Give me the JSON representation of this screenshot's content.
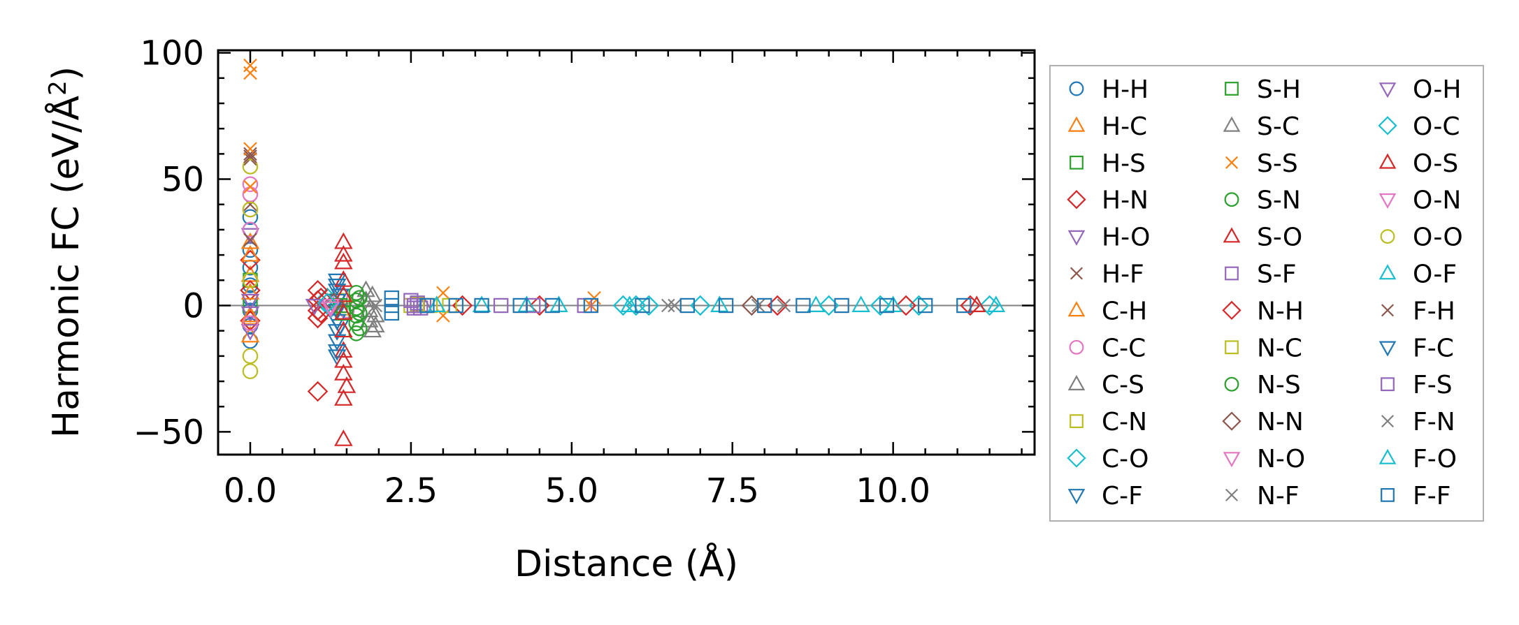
{
  "chart_data": {
    "type": "scatter",
    "title": "",
    "xlabel": "Distance (Å)",
    "ylabel_main": "Harmonic FC (eV/Å",
    "ylabel_sup": "2",
    "ylabel_close": ")",
    "xlim": [
      -0.5,
      12.2
    ],
    "ylim": [
      -59,
      101
    ],
    "x_ticks": [
      0.0,
      2.5,
      5.0,
      7.5,
      10.0
    ],
    "x_tick_labels": [
      "0.0",
      "2.5",
      "5.0",
      "7.5",
      "10.0"
    ],
    "y_ticks": [
      -50,
      0,
      50,
      100
    ],
    "y_tick_labels": [
      "−50",
      "0",
      "50",
      "100"
    ],
    "zero_line": 0,
    "legend_position": "right, outside plot",
    "series": [
      {
        "name": "H-H",
        "marker": "circle",
        "color": "#1f77b4",
        "points": [
          [
            0,
            35
          ],
          [
            0,
            30
          ],
          [
            0,
            22
          ],
          [
            0,
            15
          ],
          [
            0,
            8
          ],
          [
            0,
            3
          ],
          [
            0,
            -2
          ],
          [
            0,
            -8
          ],
          [
            0,
            -14
          ]
        ]
      },
      {
        "name": "H-C",
        "marker": "triangle-up",
        "color": "#ff7f0e",
        "points": [
          [
            0,
            25
          ],
          [
            0,
            12
          ],
          [
            0,
            -5
          ],
          [
            0,
            -12
          ]
        ]
      },
      {
        "name": "H-S",
        "marker": "square",
        "color": "#2ca02c",
        "points": [
          [
            0,
            10
          ],
          [
            0,
            0
          ]
        ]
      },
      {
        "name": "H-N",
        "marker": "diamond",
        "color": "#d62728",
        "points": [
          [
            0,
            18
          ],
          [
            0,
            6
          ],
          [
            0,
            -6
          ]
        ]
      },
      {
        "name": "H-O",
        "marker": "triangle-down",
        "color": "#9467bd",
        "points": [
          [
            0,
            28
          ],
          [
            0,
            -3
          ],
          [
            0,
            -10
          ]
        ]
      },
      {
        "name": "H-F",
        "marker": "x",
        "color": "#8c564b",
        "points": [
          [
            0,
            60
          ],
          [
            0,
            58
          ],
          [
            0,
            40
          ]
        ]
      },
      {
        "name": "C-H",
        "marker": "triangle-up",
        "color": "#ff7f0e",
        "points": [
          [
            0,
            20
          ],
          [
            0,
            5
          ],
          [
            0,
            -4
          ]
        ]
      },
      {
        "name": "C-C",
        "marker": "circle",
        "color": "#e377c2",
        "points": [
          [
            0,
            48
          ],
          [
            0,
            44
          ],
          [
            0,
            38
          ],
          [
            0,
            30
          ],
          [
            0,
            -7
          ],
          [
            1.4,
            4
          ],
          [
            1.5,
            -2
          ]
        ]
      },
      {
        "name": "C-S",
        "marker": "triangle-up",
        "color": "#7f7f7f",
        "points": [
          [
            1.8,
            6
          ],
          [
            1.8,
            2
          ],
          [
            1.85,
            -2
          ],
          [
            1.85,
            -6
          ],
          [
            1.9,
            -10
          ],
          [
            2.7,
            0
          ]
        ]
      },
      {
        "name": "C-N",
        "marker": "square",
        "color": "#bcbd22",
        "points": [
          [
            1.35,
            2
          ],
          [
            1.45,
            -1
          ],
          [
            2.5,
            0
          ],
          [
            2.6,
            0.5
          ]
        ]
      },
      {
        "name": "C-O",
        "marker": "diamond",
        "color": "#17becf",
        "points": [
          [
            1.2,
            3
          ],
          [
            1.25,
            -1
          ],
          [
            5.8,
            0
          ],
          [
            6.2,
            0
          ],
          [
            7.0,
            0
          ],
          [
            9.8,
            0
          ],
          [
            10.4,
            0
          ]
        ]
      },
      {
        "name": "C-F",
        "marker": "triangle-down",
        "color": "#1f77b4",
        "points": [
          [
            1.35,
            10
          ],
          [
            1.35,
            6
          ],
          [
            1.35,
            2
          ],
          [
            1.35,
            -2
          ],
          [
            1.35,
            -6
          ],
          [
            1.35,
            -10
          ],
          [
            1.35,
            -14
          ],
          [
            1.35,
            -20
          ],
          [
            1.4,
            -8
          ],
          [
            1.4,
            4
          ]
        ]
      },
      {
        "name": "S-H",
        "marker": "square",
        "color": "#2ca02c",
        "points": [
          [
            1.4,
            0
          ],
          [
            1.45,
            -3
          ]
        ]
      },
      {
        "name": "S-C",
        "marker": "triangle-up",
        "color": "#7f7f7f",
        "points": [
          [
            1.9,
            4
          ],
          [
            1.95,
            -4
          ],
          [
            1.95,
            -8
          ]
        ]
      },
      {
        "name": "S-S",
        "marker": "x",
        "color": "#ff7f0e",
        "points": [
          [
            0,
            95
          ],
          [
            0,
            92
          ],
          [
            0,
            62
          ],
          [
            0,
            47
          ],
          [
            3.0,
            5
          ],
          [
            3.0,
            -4
          ],
          [
            5.35,
            3
          ],
          [
            5.3,
            0
          ]
        ]
      },
      {
        "name": "S-N",
        "marker": "circle",
        "color": "#2ca02c",
        "points": [
          [
            1.65,
            5
          ],
          [
            1.65,
            2
          ],
          [
            1.65,
            -1
          ],
          [
            1.65,
            -4
          ],
          [
            1.65,
            -7
          ],
          [
            1.65,
            -11
          ]
        ]
      },
      {
        "name": "S-O",
        "marker": "triangle-up",
        "color": "#d62728",
        "points": [
          [
            1.45,
            25
          ],
          [
            1.45,
            17
          ],
          [
            1.45,
            10
          ],
          [
            1.45,
            4
          ],
          [
            1.45,
            -3
          ],
          [
            1.45,
            -10
          ],
          [
            1.45,
            -18
          ],
          [
            1.45,
            -27
          ],
          [
            1.45,
            -37
          ],
          [
            1.45,
            -53
          ],
          [
            1.5,
            -32
          ]
        ]
      },
      {
        "name": "S-F",
        "marker": "square",
        "color": "#9467bd",
        "points": [
          [
            2.5,
            2
          ],
          [
            2.55,
            -1
          ],
          [
            2.6,
            1
          ],
          [
            2.65,
            -1
          ],
          [
            2.7,
            0
          ],
          [
            5.2,
            0
          ]
        ]
      },
      {
        "name": "N-H",
        "marker": "diamond",
        "color": "#d62728",
        "points": [
          [
            1.05,
            6
          ],
          [
            1.05,
            2
          ],
          [
            1.05,
            -2
          ],
          [
            1.05,
            -5
          ],
          [
            1.05,
            -34
          ],
          [
            1.1,
            3
          ],
          [
            1.1,
            -3
          ],
          [
            3.3,
            0
          ],
          [
            4.5,
            0
          ],
          [
            8.2,
            0
          ],
          [
            10.2,
            0
          ],
          [
            11.2,
            0
          ]
        ]
      },
      {
        "name": "N-C",
        "marker": "square",
        "color": "#bcbd22",
        "points": [
          [
            2.8,
            0
          ],
          [
            3.1,
            0
          ]
        ]
      },
      {
        "name": "N-S",
        "marker": "circle",
        "color": "#2ca02c",
        "points": [
          [
            1.7,
            3
          ],
          [
            1.7,
            -3
          ],
          [
            1.7,
            -9
          ]
        ]
      },
      {
        "name": "N-N",
        "marker": "diamond",
        "color": "#8c564b",
        "points": [
          [
            1.3,
            1
          ],
          [
            7.8,
            0
          ]
        ]
      },
      {
        "name": "N-O",
        "marker": "triangle-down",
        "color": "#e377c2",
        "points": [
          [
            1.25,
            0
          ]
        ]
      },
      {
        "name": "N-F",
        "marker": "x",
        "color": "#7f7f7f",
        "points": [
          [
            6.5,
            0
          ],
          [
            7.9,
            0
          ],
          [
            8.3,
            0
          ]
        ]
      },
      {
        "name": "O-H",
        "marker": "triangle-down",
        "color": "#9467bd",
        "points": [
          [
            0,
            2
          ],
          [
            1.0,
            0
          ]
        ]
      },
      {
        "name": "O-C",
        "marker": "diamond",
        "color": "#17becf",
        "points": [
          [
            1.2,
            1
          ],
          [
            6.0,
            0
          ],
          [
            9.0,
            0
          ],
          [
            11.5,
            0
          ]
        ]
      },
      {
        "name": "O-S",
        "marker": "triangle-up",
        "color": "#d62728",
        "points": [
          [
            1.45,
            20
          ],
          [
            1.45,
            -22
          ],
          [
            11.3,
            0
          ]
        ]
      },
      {
        "name": "O-N",
        "marker": "triangle-down",
        "color": "#e377c2",
        "points": [
          [
            1.25,
            -1
          ]
        ]
      },
      {
        "name": "O-O",
        "marker": "circle",
        "color": "#bcbd22",
        "points": [
          [
            0,
            55
          ],
          [
            0,
            38
          ],
          [
            0,
            -20
          ],
          [
            0,
            -26
          ],
          [
            0,
            10
          ]
        ]
      },
      {
        "name": "O-F",
        "marker": "triangle-up",
        "color": "#17becf",
        "points": [
          [
            3.6,
            0
          ],
          [
            4.3,
            0
          ],
          [
            5.9,
            0
          ],
          [
            7.3,
            0
          ],
          [
            8.8,
            0
          ],
          [
            10.0,
            0
          ],
          [
            11.6,
            0
          ]
        ]
      },
      {
        "name": "F-H",
        "marker": "x",
        "color": "#8c564b",
        "points": [
          [
            0,
            59
          ],
          [
            0,
            26
          ]
        ]
      },
      {
        "name": "F-C",
        "marker": "triangle-down",
        "color": "#1f77b4",
        "points": [
          [
            1.35,
            8
          ],
          [
            1.35,
            -18
          ]
        ]
      },
      {
        "name": "F-S",
        "marker": "square",
        "color": "#9467bd",
        "points": [
          [
            2.55,
            0
          ],
          [
            3.9,
            0
          ],
          [
            4.4,
            0
          ]
        ]
      },
      {
        "name": "F-N",
        "marker": "x",
        "color": "#7f7f7f",
        "points": [
          [
            1.95,
            0
          ],
          [
            6.6,
            0
          ]
        ]
      },
      {
        "name": "F-O",
        "marker": "triangle-up",
        "color": "#17becf",
        "points": [
          [
            2.9,
            0
          ],
          [
            4.8,
            0
          ],
          [
            9.5,
            0
          ]
        ]
      },
      {
        "name": "F-F",
        "marker": "square",
        "color": "#1f77b4",
        "points": [
          [
            2.2,
            3
          ],
          [
            2.2,
            0
          ],
          [
            2.2,
            -3
          ],
          [
            2.75,
            0
          ],
          [
            3.2,
            0
          ],
          [
            3.6,
            0
          ],
          [
            4.2,
            0
          ],
          [
            4.7,
            0
          ],
          [
            5.3,
            0
          ],
          [
            6.1,
            0
          ],
          [
            6.8,
            0
          ],
          [
            7.4,
            0
          ],
          [
            8.0,
            0
          ],
          [
            8.6,
            0
          ],
          [
            9.2,
            0
          ],
          [
            9.9,
            0
          ],
          [
            10.5,
            0
          ],
          [
            11.1,
            0
          ]
        ]
      }
    ]
  }
}
